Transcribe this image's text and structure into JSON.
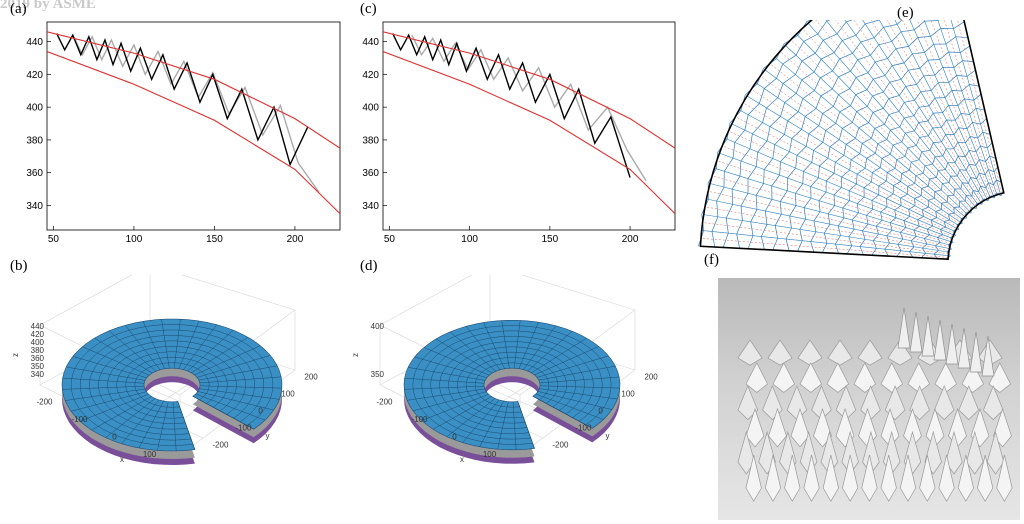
{
  "watermark": "2019 by ASME",
  "panels": {
    "a": "(a)",
    "b": "(b)",
    "c": "(c)",
    "d": "(d)",
    "e": "(e)",
    "f": "(f)"
  },
  "chart_data": [
    {
      "id": "a",
      "type": "line",
      "x_ticks": [
        50,
        100,
        150,
        200
      ],
      "y_ticks": [
        340,
        360,
        380,
        400,
        420,
        440
      ],
      "xlim": [
        46,
        228
      ],
      "ylim": [
        325,
        452
      ],
      "upper_curve": {
        "x": [
          46,
          100,
          150,
          200,
          228
        ],
        "y": [
          446,
          433,
          417,
          393,
          375
        ],
        "color": "#e03030"
      },
      "lower_curve": {
        "x": [
          46,
          100,
          150,
          200,
          228
        ],
        "y": [
          434,
          414,
          392,
          362,
          335
        ],
        "color": "#e03030"
      },
      "black_zigzag": {
        "x": [
          52,
          57,
          62,
          67,
          72,
          77,
          82,
          87,
          92,
          98,
          104,
          111,
          118,
          125,
          133,
          141,
          149,
          158,
          167,
          177,
          187,
          197,
          208
        ],
        "y": [
          445,
          435,
          444,
          432,
          443,
          429,
          441,
          426,
          439,
          422,
          436,
          417,
          432,
          411,
          427,
          403,
          420,
          393,
          411,
          380,
          400,
          365,
          388
        ],
        "color": "#000000"
      },
      "gray_zigzag": {
        "x": [
          62,
          68,
          74,
          80,
          86,
          93,
          100,
          107,
          115,
          123,
          131,
          140,
          149,
          159,
          169,
          180,
          191,
          202,
          215
        ],
        "y": [
          444,
          432,
          443,
          429,
          441,
          425,
          438,
          420,
          434,
          414,
          428,
          406,
          421,
          396,
          412,
          383,
          401,
          366,
          348
        ],
        "color": "#aaaaaa"
      }
    },
    {
      "id": "c",
      "type": "line",
      "x_ticks": [
        50,
        100,
        150,
        200
      ],
      "y_ticks": [
        340,
        360,
        380,
        400,
        420,
        440
      ],
      "xlim": [
        46,
        228
      ],
      "ylim": [
        325,
        452
      ],
      "upper_curve": {
        "x": [
          46,
          100,
          150,
          200,
          228
        ],
        "y": [
          446,
          433,
          417,
          393,
          375
        ],
        "color": "#e03030"
      },
      "lower_curve": {
        "x": [
          46,
          100,
          150,
          200,
          228
        ],
        "y": [
          434,
          414,
          392,
          362,
          335
        ],
        "color": "#e03030"
      },
      "black_zigzag": {
        "x": [
          52,
          57,
          62,
          67,
          72,
          77,
          82,
          87,
          92,
          98,
          104,
          111,
          118,
          125,
          133,
          141,
          150,
          159,
          168,
          178,
          188,
          200
        ],
        "y": [
          445,
          435,
          444,
          432,
          443,
          429,
          441,
          426,
          439,
          422,
          436,
          417,
          432,
          411,
          427,
          403,
          420,
          393,
          411,
          378,
          394,
          357
        ],
        "color": "#000000"
      },
      "gray_zigzag": {
        "x": [
          64,
          70,
          77,
          84,
          91,
          99,
          107,
          115,
          124,
          133,
          143,
          153,
          163,
          174,
          186,
          198,
          210
        ],
        "y": [
          444,
          432,
          442,
          428,
          439,
          423,
          435,
          417,
          430,
          410,
          424,
          400,
          414,
          386,
          400,
          374,
          355
        ],
        "color": "#aaaaaa"
      }
    },
    {
      "id": "b",
      "type": "other",
      "z_ticks": [
        340,
        350,
        360,
        380,
        400,
        420,
        440
      ],
      "x_ticks": [
        -200,
        -100,
        0,
        100,
        200
      ],
      "y_ticks": [
        -200,
        -100,
        0,
        100,
        200
      ],
      "xlabel": "x",
      "ylabel": "y",
      "zlabel": "z",
      "surface_color": "#3a8fc4"
    },
    {
      "id": "d",
      "type": "other",
      "z_ticks": [
        350,
        400
      ],
      "x_ticks": [
        -200,
        -100,
        0,
        100,
        200
      ],
      "y_ticks": [
        -200,
        -100,
        0,
        100,
        200
      ],
      "xlabel": "x",
      "ylabel": "y",
      "zlabel": "z",
      "surface_color": "#3a8fc4"
    }
  ],
  "crease_pattern": {
    "outer_color": "#000000",
    "radial_color": "#2f7fc0",
    "dash_color": "#e06060",
    "rings": 20,
    "spokes": 26
  }
}
